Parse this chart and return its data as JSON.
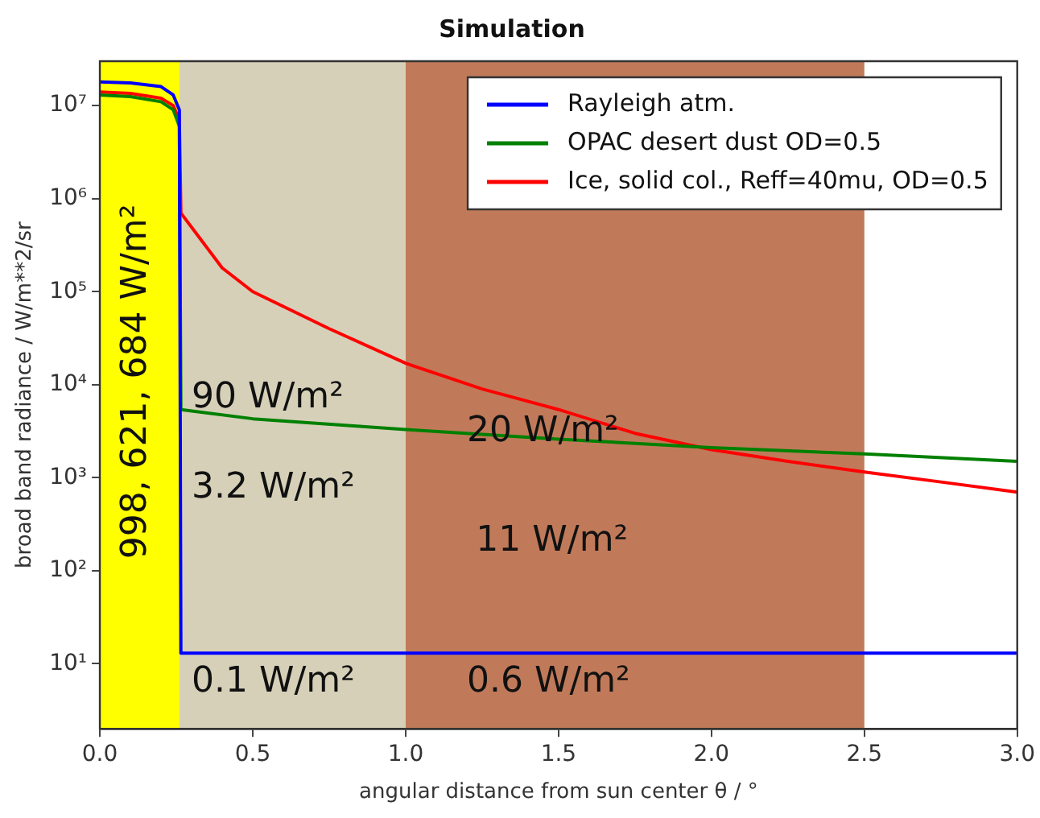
{
  "chart_data": {
    "type": "line",
    "title": "Simulation",
    "xlabel": "angular distance from sun center θ / °",
    "ylabel": "broad band radiance / W/m**2/sr",
    "log": "y",
    "grid": false,
    "legend": "top right",
    "marker": "none",
    "line_style": "solid",
    "xlim": [
      0,
      3
    ],
    "xticks": [
      {
        "value": 0,
        "label": "0.0"
      },
      {
        "value": 0.5,
        "label": "0.5"
      },
      {
        "value": 1,
        "label": "1.0"
      },
      {
        "value": 1.5,
        "label": "1.5"
      },
      {
        "value": 2,
        "label": "2.0"
      },
      {
        "value": 2.5,
        "label": "2.5"
      },
      {
        "value": 3,
        "label": "3.0"
      }
    ],
    "ylim": [
      2,
      30000000
    ],
    "yticks": [
      {
        "value": 10,
        "label": "10¹"
      },
      {
        "value": 100,
        "label": "10²"
      },
      {
        "value": 1000,
        "label": "10³"
      },
      {
        "value": 10000,
        "label": "10⁴"
      },
      {
        "value": 100000,
        "label": "10⁵"
      },
      {
        "value": 1000000,
        "label": "10⁶"
      },
      {
        "value": 10000000,
        "label": "10⁷"
      }
    ],
    "series": [
      {
        "name": "Rayleigh atm.",
        "color": "#0000ff",
        "x": [
          0,
          0.1,
          0.2,
          0.24,
          0.26,
          0.265,
          0.5,
          1,
          1.5,
          2,
          2.5,
          3
        ],
        "values": [
          18000000,
          17500000,
          16000000,
          13000000,
          9000000,
          13,
          13,
          13,
          13,
          13,
          13,
          13
        ]
      },
      {
        "name": "OPAC desert dust OD=0.5",
        "color": "#008000",
        "x": [
          0,
          0.1,
          0.2,
          0.24,
          0.26,
          0.265,
          0.5,
          1,
          1.5,
          2,
          2.5,
          3
        ],
        "values": [
          13000000,
          12500000,
          11000000,
          9000000,
          6000000,
          5400,
          4300,
          3300,
          2600,
          2100,
          1800,
          1500
        ]
      },
      {
        "name": "Ice, solid col., Reff=40mu, OD=0.5",
        "color": "#ff0000",
        "x": [
          0,
          0.1,
          0.2,
          0.24,
          0.26,
          0.265,
          0.4,
          0.5,
          0.75,
          1,
          1.25,
          1.5,
          1.75,
          2,
          2.25,
          2.5,
          2.75,
          3
        ],
        "values": [
          14000000,
          13500000,
          12000000,
          10000000,
          7000000,
          700000,
          180000,
          100000,
          40000,
          17000,
          9000,
          5400,
          3000,
          2000,
          1500,
          1150,
          900,
          700
        ]
      }
    ],
    "bands": [
      {
        "axis": "x",
        "from": 0,
        "to": 0.26,
        "color": "#ffff00"
      },
      {
        "axis": "x",
        "from": 0.26,
        "to": 1,
        "color": "#d6d0b8"
      },
      {
        "axis": "x",
        "from": 1,
        "to": 2.5,
        "color": "#c07a5a"
      }
    ],
    "annotations": [
      "998, 621, 684 W/m²",
      "90 W/m²",
      "20 W/m²",
      "3.2 W/m²",
      "11 W/m²",
      "0.1 W/m²",
      "0.6 W/m²"
    ]
  }
}
